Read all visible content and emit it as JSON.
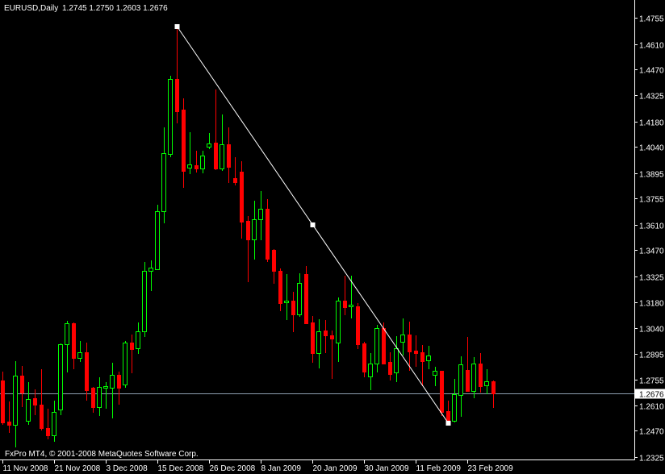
{
  "header": {
    "symbol_period": "EURUSD,Daily",
    "ohlc": "1.2745 1.2750 1.2603 1.2676"
  },
  "footer": {
    "copyright": "FxPro MT4, © 2001-2008 MetaQuotes Software Corp."
  },
  "colors": {
    "background": "#000000",
    "bull": "#00ff00",
    "bear": "#ff0000",
    "axis": "#ffffff",
    "price_line": "#8fa0b0",
    "trendline": "#ffffff"
  },
  "chart_data": {
    "type": "candlestick",
    "symbol": "EURUSD",
    "timeframe": "Daily",
    "ylim": [
      1.2325,
      1.4755
    ],
    "grid": false,
    "y_ticks": [
      "1.4755",
      "1.4610",
      "1.4470",
      "1.4325",
      "1.4180",
      "1.4040",
      "1.3895",
      "1.3755",
      "1.3610",
      "1.3470",
      "1.3325",
      "1.3180",
      "1.3040",
      "1.2895",
      "1.2755",
      "1.2610",
      "1.2470",
      "1.2325"
    ],
    "x_ticks": [
      {
        "bar": 0,
        "label": "11 Nov 2008"
      },
      {
        "bar": 8,
        "label": "21 Nov 2008"
      },
      {
        "bar": 16,
        "label": "3 Dec 2008"
      },
      {
        "bar": 24,
        "label": "15 Dec 2008"
      },
      {
        "bar": 32,
        "label": "26 Dec 2008"
      },
      {
        "bar": 40,
        "label": "8 Jan 2009"
      },
      {
        "bar": 48,
        "label": "20 Jan 2009"
      },
      {
        "bar": 56,
        "label": "30 Jan 2009"
      },
      {
        "bar": 64,
        "label": "11 Feb 2009"
      },
      {
        "bar": 72,
        "label": "23 Feb 2009"
      }
    ],
    "current_price": "1.2676",
    "trendline": {
      "from": {
        "bar": 27,
        "price": 1.4706
      },
      "to": {
        "bar": 69,
        "price": 1.2517
      }
    },
    "ohlc": [
      [
        1.2748,
        1.2797,
        1.2509,
        1.2518
      ],
      [
        1.2522,
        1.2633,
        1.2464,
        1.2504
      ],
      [
        1.2504,
        1.2855,
        1.2384,
        1.2775
      ],
      [
        1.2775,
        1.2828,
        1.2606,
        1.2682
      ],
      [
        1.2526,
        1.274,
        1.2509,
        1.2646
      ],
      [
        1.2651,
        1.27,
        1.2562,
        1.2615
      ],
      [
        1.2615,
        1.2811,
        1.2478,
        1.2486
      ],
      [
        1.2486,
        1.2593,
        1.2429,
        1.2447
      ],
      [
        1.2447,
        1.2637,
        1.2415,
        1.2575
      ],
      [
        1.2589,
        1.2953,
        1.2562,
        1.2948
      ],
      [
        1.2948,
        1.3077,
        1.2797,
        1.3064
      ],
      [
        1.3064,
        1.3068,
        1.2815,
        1.2873
      ],
      [
        1.2873,
        1.2966,
        1.2855,
        1.2904
      ],
      [
        1.2904,
        1.2957,
        1.2642,
        1.2695
      ],
      [
        1.2708,
        1.2713,
        1.2575,
        1.2602
      ],
      [
        1.2602,
        1.2766,
        1.2558,
        1.2713
      ],
      [
        1.2708,
        1.274,
        1.2597,
        1.2717
      ],
      [
        1.2708,
        1.2846,
        1.2544,
        1.278
      ],
      [
        1.278,
        1.2797,
        1.262,
        1.2708
      ],
      [
        1.2726,
        1.2966,
        1.2713,
        1.2957
      ],
      [
        1.2957,
        1.3002,
        1.2793,
        1.2922
      ],
      [
        1.2926,
        1.3068,
        1.2899,
        1.3019
      ],
      [
        1.3019,
        1.3406,
        1.2993,
        1.3357
      ],
      [
        1.3357,
        1.3414,
        1.3246,
        1.3375
      ],
      [
        1.3366,
        1.3721,
        1.3366,
        1.3685
      ],
      [
        1.3685,
        1.4147,
        1.3623,
        1.4005
      ],
      [
        1.4,
        1.4436,
        1.3987,
        1.4418
      ],
      [
        1.4418,
        1.4706,
        1.4174,
        1.424
      ],
      [
        1.4245,
        1.4307,
        1.3818,
        1.3907
      ],
      [
        1.3925,
        1.412,
        1.3894,
        1.3943
      ],
      [
        1.3938,
        1.4018,
        1.3902,
        1.3921
      ],
      [
        1.3921,
        1.4018,
        1.3897,
        1.3992
      ],
      [
        1.404,
        1.4116,
        1.4032,
        1.4058
      ],
      [
        1.4063,
        1.436,
        1.3916,
        1.3921
      ],
      [
        1.3921,
        1.4218,
        1.3912,
        1.4054
      ],
      [
        1.4054,
        1.4147,
        1.3845,
        1.3929
      ],
      [
        1.3867,
        1.3983,
        1.3832,
        1.3845
      ],
      [
        1.3903,
        1.3961,
        1.3539,
        1.3628
      ],
      [
        1.3632,
        1.3659,
        1.3299,
        1.353
      ],
      [
        1.353,
        1.3743,
        1.3423,
        1.3641
      ],
      [
        1.3641,
        1.3796,
        1.353,
        1.3699
      ],
      [
        1.3699,
        1.3752,
        1.341,
        1.3423
      ],
      [
        1.3472,
        1.3477,
        1.3286,
        1.3357
      ],
      [
        1.3357,
        1.337,
        1.3135,
        1.3175
      ],
      [
        1.3179,
        1.3335,
        1.3086,
        1.3188
      ],
      [
        1.3188,
        1.3241,
        1.3019,
        1.3112
      ],
      [
        1.3112,
        1.3343,
        1.3104,
        1.3286
      ],
      [
        1.3335,
        1.3383,
        1.3064,
        1.3064
      ],
      [
        1.3068,
        1.3104,
        1.2851,
        1.2899
      ],
      [
        1.2899,
        1.3086,
        1.282,
        1.3019
      ],
      [
        1.3024,
        1.3081,
        1.2904,
        1.2997
      ],
      [
        1.2997,
        1.3024,
        1.2762,
        1.2979
      ],
      [
        1.2957,
        1.3206,
        1.2855,
        1.3188
      ],
      [
        1.3188,
        1.3326,
        1.3112,
        1.3153
      ],
      [
        1.3157,
        1.3326,
        1.3095,
        1.3166
      ],
      [
        1.3161,
        1.3175,
        1.2926,
        1.2948
      ],
      [
        1.2953,
        1.2962,
        1.2771,
        1.2797
      ],
      [
        1.2771,
        1.2899,
        1.27,
        1.2842
      ],
      [
        1.2842,
        1.3055,
        1.2797,
        1.3037
      ],
      [
        1.3037,
        1.3068,
        1.2842,
        1.2842
      ],
      [
        1.2851,
        1.2904,
        1.2753,
        1.2784
      ],
      [
        1.2793,
        1.2993,
        1.2744,
        1.2926
      ],
      [
        1.2962,
        1.309,
        1.2891,
        1.3002
      ],
      [
        1.3002,
        1.3073,
        1.2806,
        1.2908
      ],
      [
        1.2913,
        1.2997,
        1.2828,
        1.2899
      ],
      [
        1.2904,
        1.2944,
        1.2722,
        1.2855
      ],
      [
        1.2859,
        1.2939,
        1.2815,
        1.2886
      ],
      [
        1.278,
        1.2824,
        1.2722,
        1.2802
      ],
      [
        1.2802,
        1.2802,
        1.2558,
        1.2575
      ],
      [
        1.258,
        1.2637,
        1.2522,
        1.2526
      ],
      [
        1.2526,
        1.2757,
        1.2522,
        1.2673
      ],
      [
        1.2669,
        1.2882,
        1.2553,
        1.2837
      ],
      [
        1.2806,
        1.2988,
        1.2691,
        1.2691
      ],
      [
        1.2691,
        1.2877,
        1.2655,
        1.2842
      ],
      [
        1.2842,
        1.2899,
        1.2686,
        1.2717
      ],
      [
        1.2722,
        1.2811,
        1.2677,
        1.2744
      ],
      [
        1.2745,
        1.275,
        1.2603,
        1.2676
      ]
    ]
  }
}
